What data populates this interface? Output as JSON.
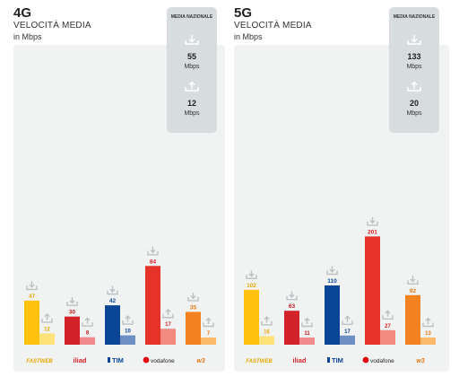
{
  "chart_data": [
    {
      "type": "bar",
      "title": "4G",
      "subtitle": "VELOCITÀ MEDIA",
      "unit_label": "in Mbps",
      "categories": [
        "FASTWEB",
        "iliad",
        "TIM",
        "vodafone",
        "WindTre"
      ],
      "series": [
        {
          "direction": "download",
          "values": [
            47,
            30,
            42,
            84,
            35
          ]
        },
        {
          "direction": "upload",
          "values": [
            12,
            8,
            10,
            17,
            7
          ]
        }
      ],
      "average": {
        "title": "MEDIA NAZIONALE",
        "download": 55,
        "upload": 12,
        "unit": "Mbps"
      },
      "ylim": [
        0,
        90
      ]
    },
    {
      "type": "bar",
      "title": "5G",
      "subtitle": "VELOCITÀ MEDIA",
      "unit_label": "in Mbps",
      "categories": [
        "FASTWEB",
        "iliad",
        "TIM",
        "vodafone",
        "WindTre"
      ],
      "series": [
        {
          "direction": "download",
          "values": [
            102,
            63,
            110,
            201,
            92
          ]
        },
        {
          "direction": "upload",
          "values": [
            16,
            11,
            17,
            27,
            13
          ]
        }
      ],
      "average": {
        "title": "MEDIA NAZIONALE",
        "download": 133,
        "upload": 20,
        "unit": "Mbps"
      },
      "ylim": [
        0,
        215
      ]
    }
  ],
  "colors": {
    "download": [
      "#ffc20e",
      "#d2232a",
      "#0a4596",
      "#e63329",
      "#f58220"
    ],
    "upload": [
      "#ffe27a",
      "#f08a8c",
      "#6e8fc4",
      "#f28a80",
      "#fbb96b"
    ],
    "labels": [
      "#e6a800",
      "#c01a21",
      "#0a4596",
      "#d81f26",
      "#e8770f"
    ],
    "brand": [
      "#e6a800",
      "#d2232a",
      "#0a4596",
      "#e30613",
      "#e8770f"
    ]
  },
  "icons": {
    "download": "download-arrow-icon",
    "upload": "upload-arrow-icon"
  }
}
